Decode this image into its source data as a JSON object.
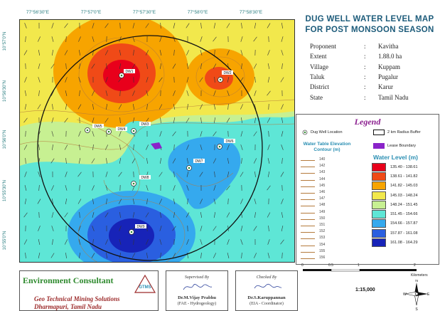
{
  "map": {
    "top_coords": [
      "77°56'30\"E",
      "77°57'0\"E",
      "77°57'30\"E",
      "77°58'0\"E",
      "77°58'30\"E"
    ],
    "left_coords": [
      "10°57'0\"N",
      "10°56'30\"N",
      "10°56'0\"N",
      "10°55'30\"N",
      "10°55'0\"N"
    ],
    "wells": [
      "DW1",
      "DW2",
      "DW3",
      "DW4",
      "DW5",
      "DW6",
      "DW7",
      "DW8",
      "DW9"
    ],
    "colors": {
      "ramp": [
        "#e8001b",
        "#f04a17",
        "#f7a400",
        "#f2e84c",
        "#c7f092",
        "#5ee6d6",
        "#35a9ee",
        "#2a5fe0",
        "#1723b8"
      ],
      "contour": "#b47a3c",
      "buffer": "#111111",
      "lease": "#8a23c9"
    }
  },
  "title": {
    "line1": "DUG WELL WATER LEVEL MAP",
    "line2": "FOR POST MONSOON SEASON"
  },
  "info": [
    {
      "key": "Proponent",
      "value": "Kavitha"
    },
    {
      "key": "Extent",
      "value": "1.88.0 ha"
    },
    {
      "key": "Village",
      "value": "Kuppam"
    },
    {
      "key": "Taluk",
      "value": "Pugalur"
    },
    {
      "key": "District",
      "value": "Karur"
    },
    {
      "key": "State",
      "value": "Tamil Nadu"
    }
  ],
  "info_sep": ":",
  "legend": {
    "title": "Legend",
    "dug_well": "Dug Well Location",
    "buffer": "2 km Radius Buffer",
    "lease": "Lease Boundary",
    "wt_title_1": "Water Table Elevation",
    "wt_title_2": "Contour (m)",
    "contours": [
      "140",
      "142",
      "143",
      "144",
      "145",
      "146",
      "147",
      "148",
      "149",
      "150",
      "151",
      "152",
      "153",
      "154",
      "155",
      "156"
    ],
    "wl_title": "Water Level (m)",
    "wl_classes": [
      "135.40 - 138.61",
      "138.61 - 141.82",
      "141.82 - 145.03",
      "145.03 - 148.24",
      "148.24 - 151.45",
      "151.45 - 154.66",
      "154.66 - 157.87",
      "157.87 - 161.08",
      "161.08 - 164.29"
    ]
  },
  "scale": {
    "labels": [
      "0",
      "0.5",
      "1",
      "2"
    ],
    "unit": "Kilometers",
    "ratio": "1:15,000"
  },
  "footer": {
    "consultant": "Environment Consultant",
    "consultant_sub1": "Geo Technical Mining Solutions",
    "consultant_sub2": "Dharmapuri, Tamil Nadu",
    "logo_text": "GTMS",
    "sig1_title": "Supervised By",
    "sig1_name": "Dr.M.Vijay Prabhu",
    "sig1_role": "(FAE - Hydrogeology)",
    "sig2_title": "Checked By",
    "sig2_name": "Dr.S.Karuppannan",
    "sig2_role": "(EIA - Coordinator)"
  },
  "north": {
    "n": "N",
    "s": "S",
    "e": "E",
    "w": "W"
  }
}
